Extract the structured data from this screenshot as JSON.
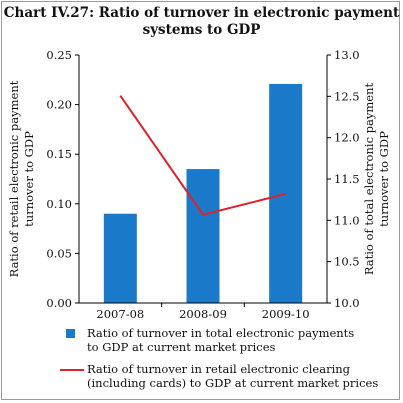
{
  "chart_title_line1": "Chart IV.27: Ratio of turnover in electronic payment",
  "chart_title_line2": "systems to GDP",
  "chart_data": {
    "type": "bar",
    "categories": [
      "2007-08",
      "2008-09",
      "2009-10"
    ],
    "series": [
      {
        "name": "Ratio of turnover in total electronic payments to GDP at current market prices",
        "kind": "bar",
        "axis": "right",
        "color": "#1a7ac9",
        "values": [
          11.08,
          11.62,
          12.65
        ]
      },
      {
        "name": "Ratio of turnover in retail electronic clearing (including cards) to GDP at current market prices",
        "kind": "line",
        "axis": "left",
        "color": "#e0202a",
        "values": [
          0.209,
          0.089,
          0.11
        ]
      }
    ],
    "left_axis": {
      "label_line1": "Ratio of retail electronic payment",
      "label_line2": "turnover to GDP",
      "range": [
        0,
        0.25
      ],
      "ticks": [
        "0.00",
        "0.05",
        "0.10",
        "0.15",
        "0.20",
        "0.25"
      ]
    },
    "right_axis": {
      "label_line1": "Ratio of total electronic payment",
      "label_line2": "turnover to GDP",
      "range": [
        10.0,
        13.0
      ],
      "ticks": [
        "10.0",
        "10.5",
        "11.0",
        "11.5",
        "12.0",
        "12.5",
        "13.0"
      ]
    },
    "grid": false,
    "legend_position": "bottom"
  },
  "legend": {
    "bar_label_line1": "Ratio of turnover in total electronic payments",
    "bar_label_line2": "to GDP at current market prices",
    "line_label_line1": "Ratio of turnover in retail electronic clearing",
    "line_label_line2": "(including cards) to GDP at current market prices"
  }
}
